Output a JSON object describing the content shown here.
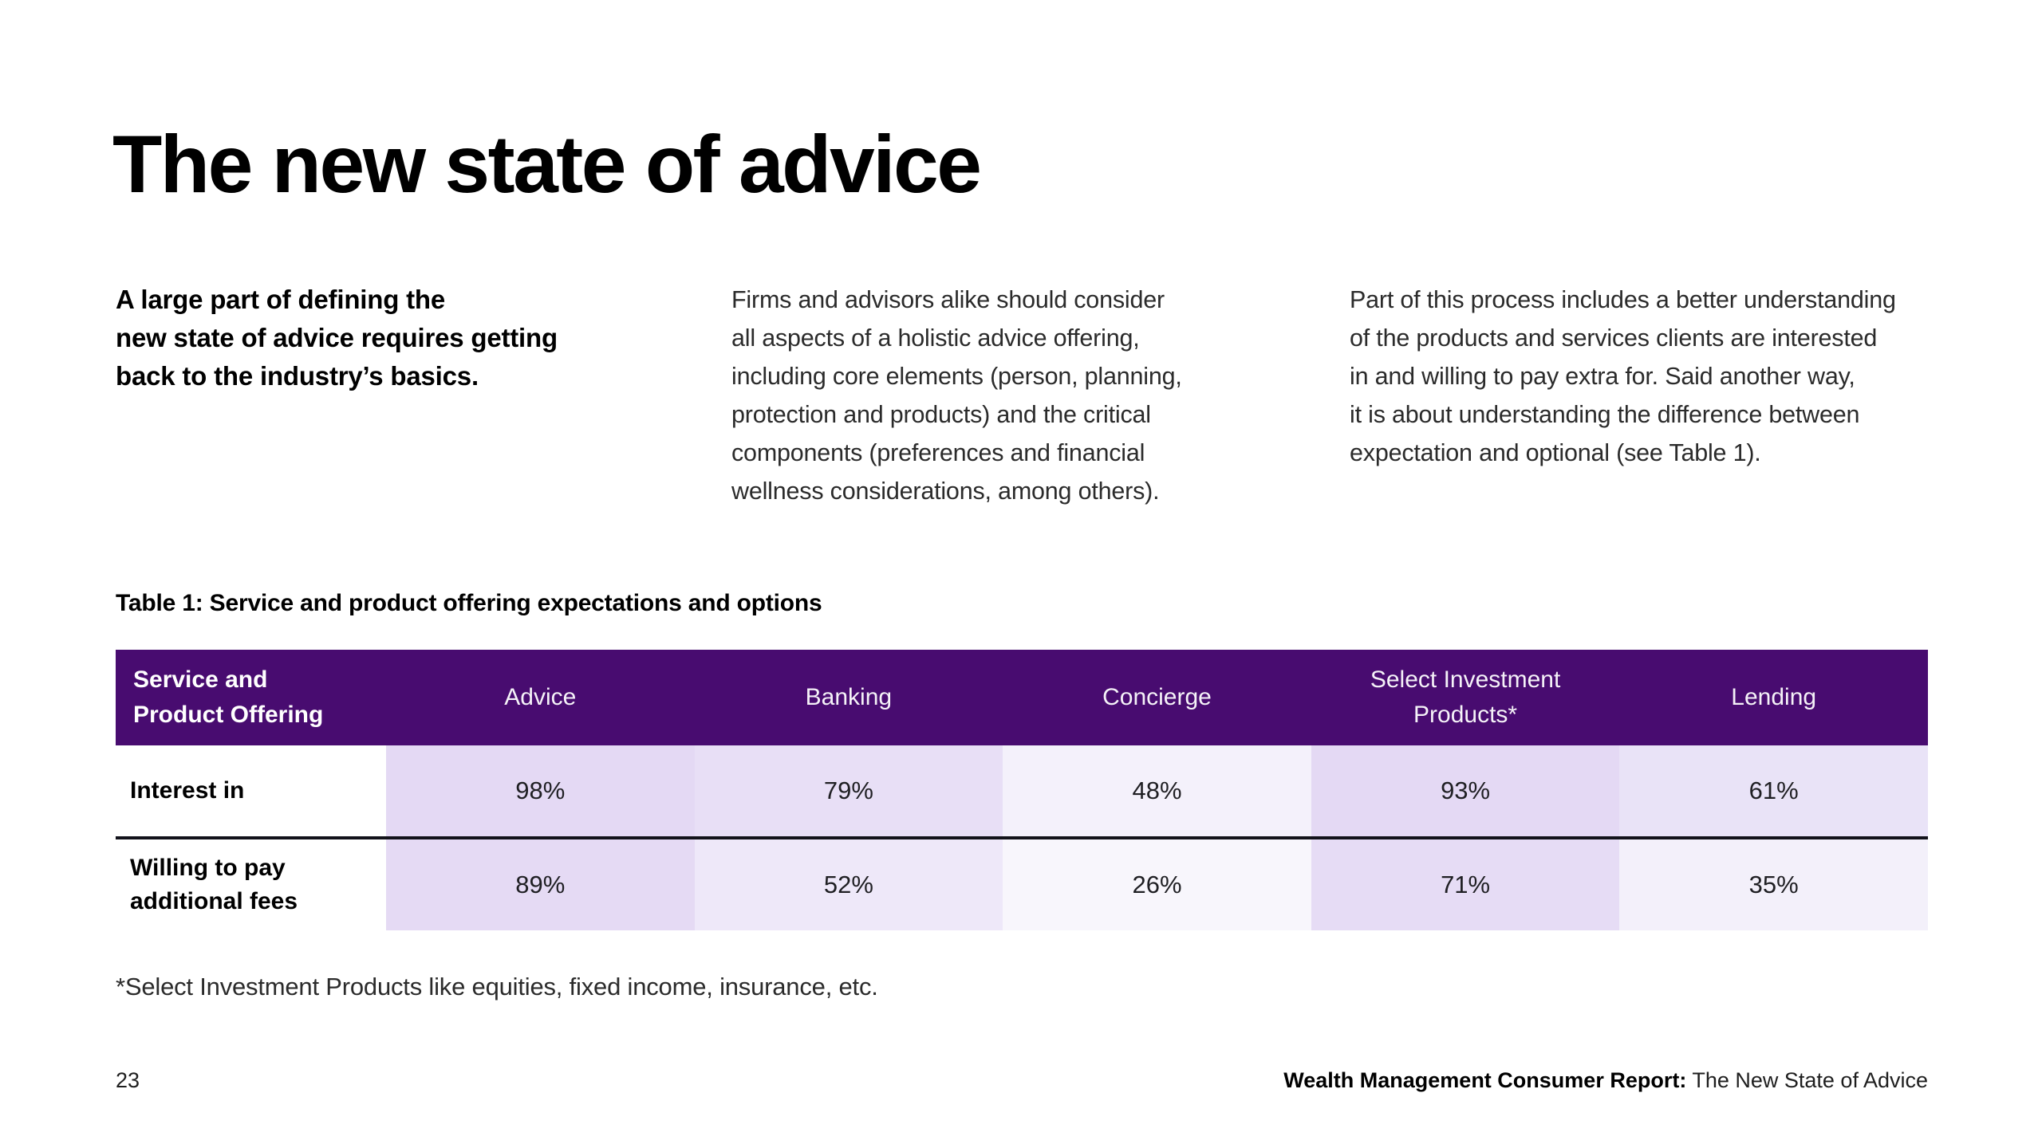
{
  "page_title": "The new state of advice",
  "intro": {
    "lead": "A large part of defining the\nnew state of advice requires getting\nback to the industry’s basics.",
    "paragraph_2": "Firms and advisors alike should consider\nall aspects of a holistic advice offering,\nincluding core elements (person, planning,\nprotection and products) and the critical\ncomponents (preferences and financial\nwellness considerations, among others).",
    "paragraph_3": "Part of this process includes a better understanding\nof the products and services clients are interested\nin and willing to pay extra for. Said another way,\nit is about understanding the difference between\nexpectation and optional (see Table 1)."
  },
  "table": {
    "caption": "Table 1: Service and product offering expectations and options",
    "corner_header": "Service and\nProduct Offering",
    "column_headers": [
      "Advice",
      "Banking",
      "Concierge",
      "Select Investment\nProducts*",
      "Lending"
    ],
    "rows": [
      {
        "label": "Interest in",
        "values": [
          "98%",
          "79%",
          "48%",
          "93%",
          "61%"
        ],
        "cell_colors": [
          "#E4D9F4",
          "#E8DFF6",
          "#F4F1FB",
          "#E4D9F4",
          "#E9E3F7"
        ]
      },
      {
        "label": "Willing to pay\nadditional fees",
        "values": [
          "89%",
          "52%",
          "26%",
          "71%",
          "35%"
        ],
        "cell_colors": [
          "#E5DAF4",
          "#EEE8F9",
          "#F8F6FC",
          "#E6DCF5",
          "#F3F0FA"
        ]
      }
    ],
    "footnote": "*Select Investment Products like equities, fixed income, insurance, etc.",
    "colors": {
      "header_bg": "#480C70",
      "header_text": "#FFFFFF",
      "row_divider": "#12121A"
    }
  },
  "footer": {
    "page_number": "23",
    "report_title_bold": "Wealth Management Consumer Report:",
    "report_title_regular": " The New State of Advice"
  },
  "chart_data": {
    "type": "table",
    "title": "Table 1: Service and product offering expectations and options",
    "columns": [
      "Advice",
      "Banking",
      "Concierge",
      "Select Investment Products*",
      "Lending"
    ],
    "rows": [
      {
        "label": "Interest in",
        "values_pct": [
          98,
          79,
          48,
          93,
          61
        ]
      },
      {
        "label": "Willing to pay additional fees",
        "values_pct": [
          89,
          52,
          26,
          71,
          35
        ]
      }
    ],
    "footnote": "*Select Investment Products like equities, fixed income, insurance, etc.",
    "layout_hints": {
      "shading": "cell tint intensity scales with percentage value",
      "header_style": "dark purple band"
    }
  }
}
